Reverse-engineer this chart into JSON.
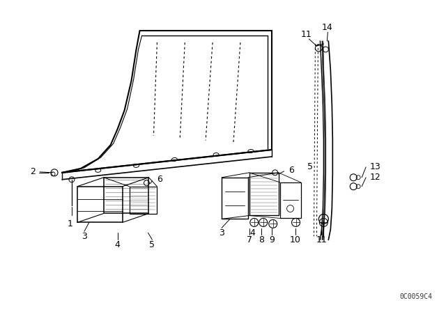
{
  "bg_color": "#ffffff",
  "fig_width": 6.4,
  "fig_height": 4.48,
  "dpi": 100,
  "watermark": "0C0059C4",
  "line_color": "#000000",
  "dashed_color": "#000000"
}
